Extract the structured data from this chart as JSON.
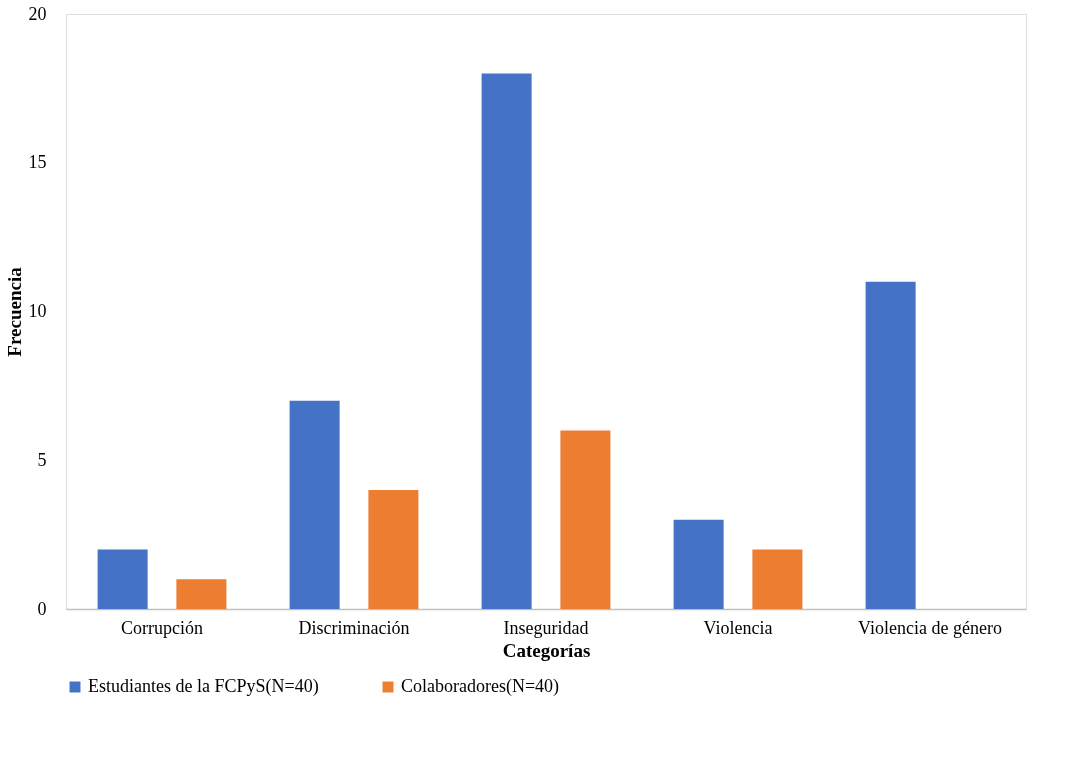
{
  "chart_data": {
    "type": "bar",
    "xlabel": "Categorías",
    "ylabel": "Frecuencia",
    "categories": [
      "Corrupción",
      "Discriminación",
      "Inseguridad",
      "Violencia",
      "Violencia de género"
    ],
    "series": [
      {
        "name": "Estudiantes de la FCPyS(N=40)",
        "color": "#4472c4",
        "values": [
          2,
          7,
          18,
          3,
          11
        ]
      },
      {
        "name": "Colaboradores(N=40)",
        "color": "#ed7d31",
        "values": [
          1,
          4,
          6,
          2,
          0
        ]
      }
    ],
    "ylim": [
      0,
      20
    ],
    "yticks": [
      0,
      5,
      10,
      15,
      20
    ],
    "grid": false,
    "legend": "bottom"
  }
}
